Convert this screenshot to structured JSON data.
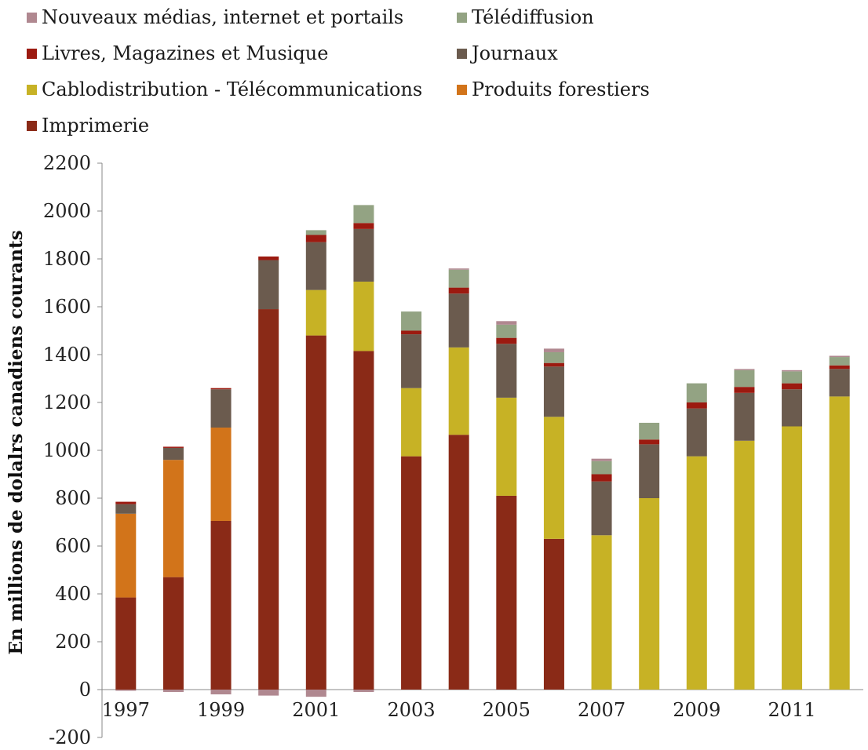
{
  "chart_data": {
    "type": "bar",
    "stacked": true,
    "ylabel": "En millions de dolalrs canadiens courants",
    "xlabel": "",
    "ylim": [
      -200,
      2200
    ],
    "yticks": [
      -200,
      0,
      200,
      400,
      600,
      800,
      1000,
      1200,
      1400,
      1600,
      1800,
      2000,
      2200
    ],
    "categories": [
      "1997",
      "1998",
      "1999",
      "2000",
      "2001",
      "2002",
      "2003",
      "2004",
      "2005",
      "2006",
      "2007",
      "2008",
      "2009",
      "2010",
      "2011",
      "2012"
    ],
    "xtick_labels": [
      "1997",
      "",
      "1999",
      "",
      "2001",
      "",
      "2003",
      "",
      "2005",
      "",
      "2007",
      "",
      "2009",
      "",
      "2011",
      ""
    ],
    "legend_position": "top",
    "series": [
      {
        "name": "Imprimerie",
        "color": "#8a2a17",
        "values": [
          385,
          470,
          705,
          1590,
          1480,
          1415,
          975,
          1065,
          810,
          630,
          0,
          0,
          0,
          0,
          0,
          0
        ]
      },
      {
        "name": "Produits forestiers",
        "color": "#d2741a",
        "values": [
          350,
          490,
          390,
          0,
          0,
          0,
          0,
          0,
          0,
          0,
          0,
          0,
          0,
          0,
          0,
          0
        ]
      },
      {
        "name": "Cablodistribution - Télécommunications",
        "color": "#c7b225",
        "values": [
          0,
          0,
          0,
          0,
          190,
          290,
          285,
          365,
          410,
          510,
          645,
          800,
          975,
          1040,
          1100,
          1225
        ]
      },
      {
        "name": "Journaux",
        "color": "#6b5b4e",
        "values": [
          40,
          50,
          160,
          205,
          200,
          220,
          225,
          225,
          225,
          210,
          225,
          225,
          200,
          200,
          155,
          115
        ]
      },
      {
        "name": "Livres, Magazines et Musique",
        "color": "#9c1a10",
        "values": [
          10,
          5,
          5,
          15,
          30,
          25,
          15,
          25,
          25,
          15,
          30,
          20,
          25,
          25,
          25,
          15
        ]
      },
      {
        "name": "Télédiffusion",
        "color": "#93a383",
        "values": [
          0,
          0,
          0,
          0,
          20,
          75,
          80,
          75,
          55,
          45,
          55,
          70,
          80,
          70,
          50,
          35
        ]
      },
      {
        "name": "Nouveaux médias, internet et portails",
        "color": "#b08890",
        "values": [
          -5,
          -10,
          -20,
          -25,
          -30,
          -10,
          0,
          5,
          15,
          15,
          10,
          0,
          0,
          5,
          5,
          5
        ]
      }
    ],
    "legend_order": [
      "Nouveaux médias, internet et portails",
      "Télédiffusion",
      "Livres, Magazines et Musique",
      "Journaux",
      "Cablodistribution - Télécommunications",
      "Produits forestiers",
      "Imprimerie"
    ]
  }
}
